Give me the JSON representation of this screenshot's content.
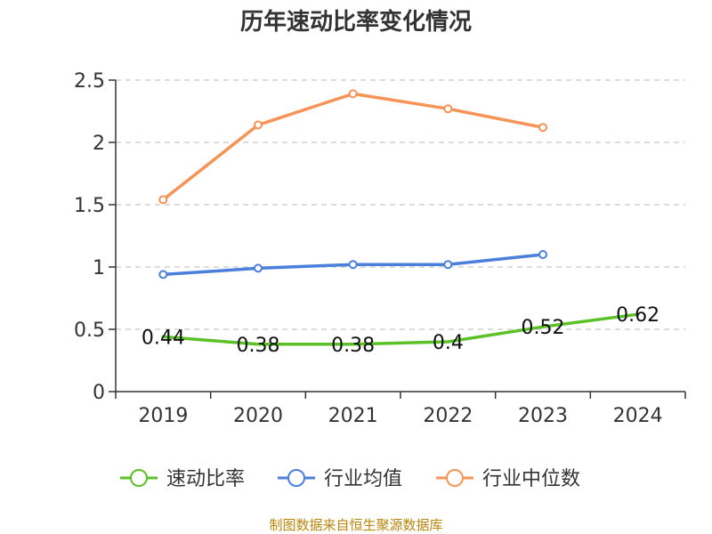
{
  "chart_data": {
    "type": "line",
    "title": "历年速动比率变化情况",
    "categories": [
      "2019",
      "2020",
      "2021",
      "2022",
      "2023",
      "2024"
    ],
    "ylim": [
      0,
      2.5
    ],
    "yticks": [
      "0",
      "0.5",
      "1",
      "1.5",
      "2",
      "2.5"
    ],
    "grid": true,
    "legend_position": "bottom",
    "series": [
      {
        "name": "速动比率",
        "color": "#5cc127",
        "values": [
          0.44,
          0.38,
          0.38,
          0.4,
          0.52,
          0.62
        ],
        "labels": [
          "0.44",
          "0.38",
          "0.38",
          "0.4",
          "0.52",
          "0.62"
        ],
        "show_markers": false
      },
      {
        "name": "行业均值",
        "color": "#4b7fdc",
        "values": [
          0.94,
          0.99,
          1.02,
          1.02,
          1.1,
          null
        ],
        "show_markers": true
      },
      {
        "name": "行业中位数",
        "color": "#f79356",
        "values": [
          1.54,
          2.14,
          2.39,
          2.27,
          2.12,
          null
        ],
        "show_markers": true
      }
    ],
    "source": "制图数据来自恒生聚源数据库"
  }
}
